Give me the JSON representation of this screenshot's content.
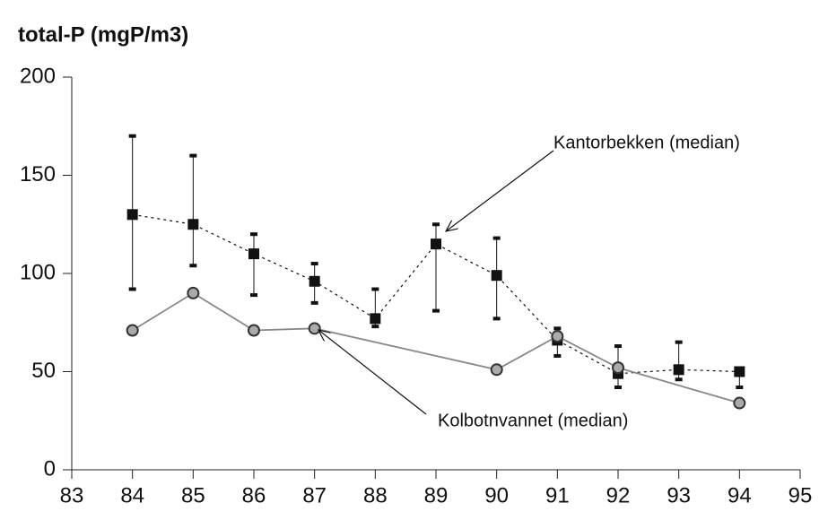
{
  "chart_data": {
    "type": "line",
    "title": "total-P (mgP/m3)",
    "xlim": [
      83,
      95
    ],
    "xticks": [
      83,
      84,
      85,
      86,
      87,
      88,
      89,
      90,
      91,
      92,
      93,
      94,
      95
    ],
    "ylim": [
      0,
      200
    ],
    "yticks": [
      0,
      50,
      100,
      150,
      200
    ],
    "series": [
      {
        "name": "Kantorbekken (median)",
        "color": "#111111",
        "marker": "square",
        "dashed": true,
        "x": [
          84,
          85,
          86,
          87,
          88,
          89,
          90,
          91,
          92,
          93,
          94
        ],
        "values": [
          130,
          125,
          110,
          96,
          77,
          115,
          99,
          66,
          49,
          51,
          50
        ],
        "high": [
          170,
          160,
          120,
          105,
          92,
          125,
          118,
          72,
          63,
          65,
          50
        ],
        "low": [
          92,
          104,
          89,
          85,
          73,
          81,
          77,
          58,
          42,
          46,
          42
        ]
      },
      {
        "name": "Kolbotnvannet (median)",
        "color": "#888888",
        "marker": "circle",
        "dashed": false,
        "x": [
          84,
          85,
          86,
          87,
          90,
          91,
          92,
          94
        ],
        "values": [
          71,
          90,
          71,
          72,
          51,
          68,
          52,
          34
        ]
      }
    ]
  }
}
